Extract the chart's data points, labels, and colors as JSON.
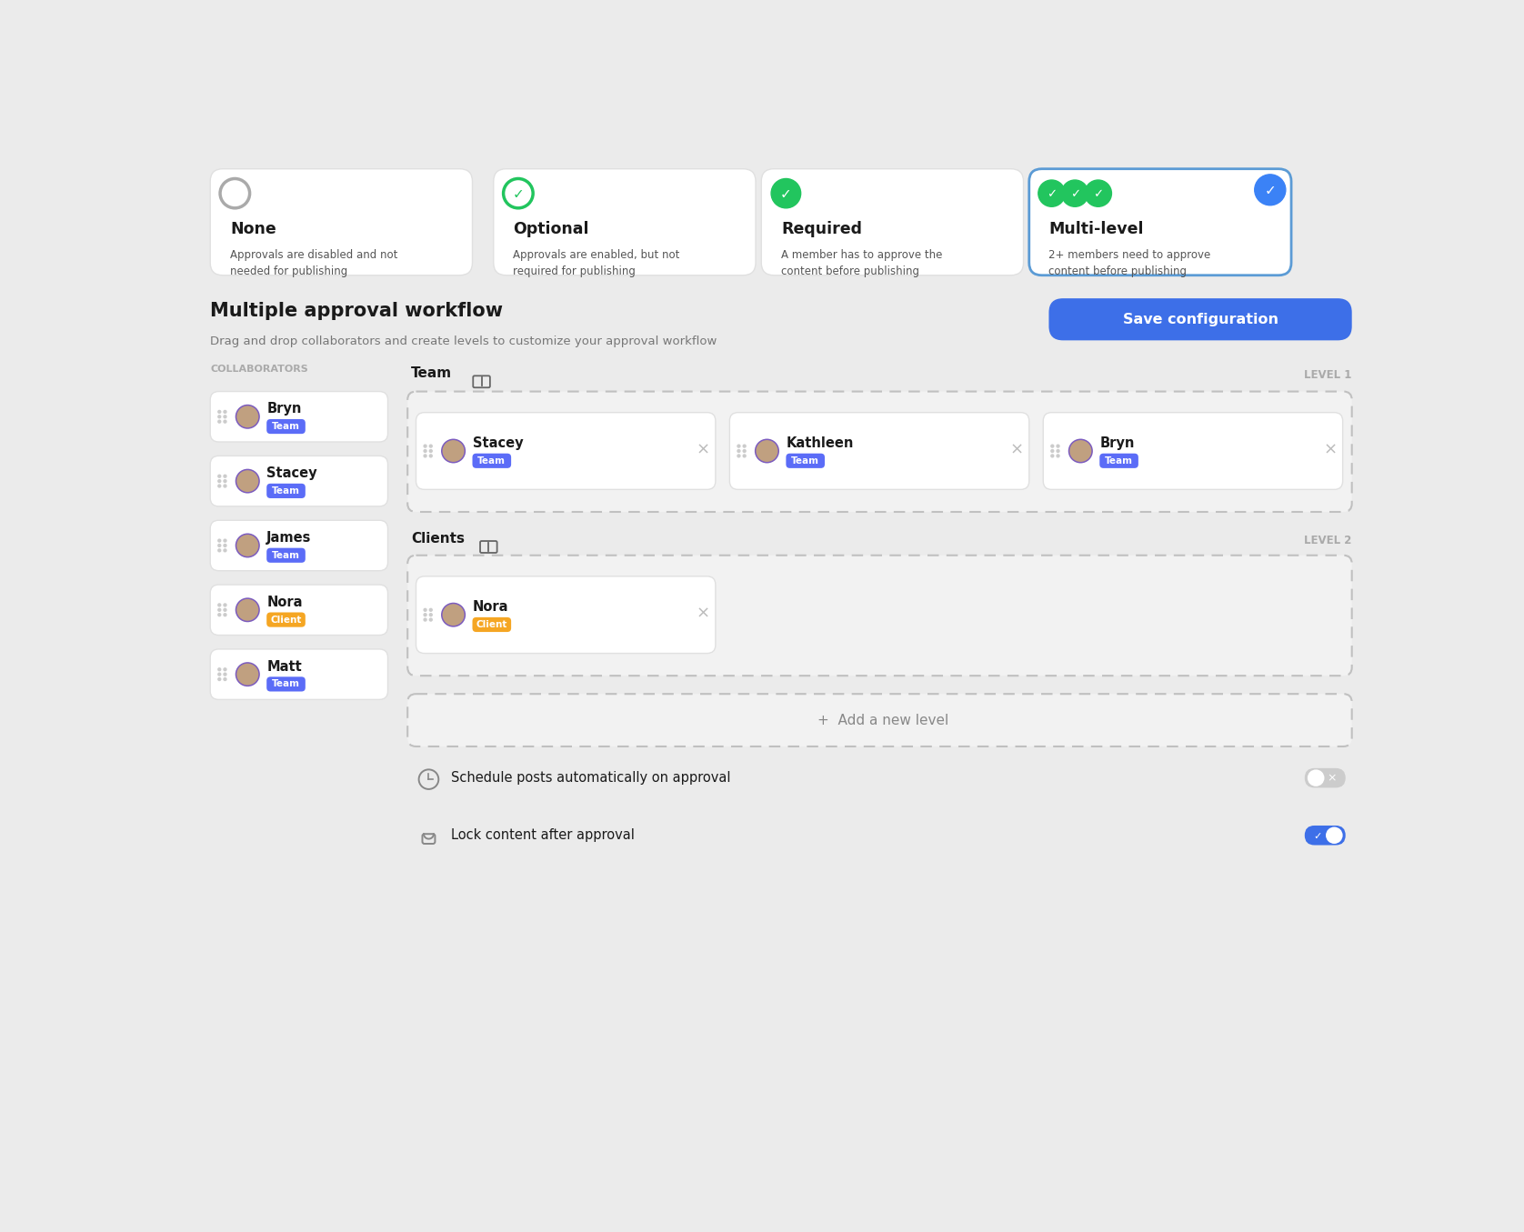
{
  "bg_color": "#ebebeb",
  "title_cards": [
    {
      "title": "None",
      "desc": "Approvals are disabled and not\nneeded for publishing",
      "icon": "circle_empty",
      "selected": false
    },
    {
      "title": "Optional",
      "desc": "Approvals are enabled, but not\nrequired for publishing",
      "icon": "circle_check_outline",
      "selected": false
    },
    {
      "title": "Required",
      "desc": "A member has to approve the\ncontent before publishing",
      "icon": "circle_check_filled",
      "selected": false
    },
    {
      "title": "Multi-level",
      "desc": "2+ members need to approve\ncontent before publishing",
      "icon": "multi_check",
      "selected": true
    }
  ],
  "section_title": "Multiple approval workflow",
  "section_subtitle": "Drag and drop collaborators and create levels to customize your approval workflow",
  "save_button_text": "Save configuration",
  "save_button_color": "#3d6fe8",
  "collaborators_label": "COLLABORATORS",
  "collaborators": [
    {
      "name": "Bryn",
      "role": "Team",
      "role_color": "#5b6cf7"
    },
    {
      "name": "Stacey",
      "role": "Team",
      "role_color": "#5b6cf7"
    },
    {
      "name": "James",
      "role": "Team",
      "role_color": "#5b6cf7"
    },
    {
      "name": "Nora",
      "role": "Client",
      "role_color": "#f5a623"
    },
    {
      "name": "Matt",
      "role": "Team",
      "role_color": "#5b6cf7"
    }
  ],
  "level1_label": "Team",
  "level1_tag": "LEVEL 1",
  "level1_members": [
    {
      "name": "Stacey",
      "role": "Team",
      "role_color": "#5b6cf7"
    },
    {
      "name": "Kathleen",
      "role": "Team",
      "role_color": "#5b6cf7"
    },
    {
      "name": "Bryn",
      "role": "Team",
      "role_color": "#5b6cf7"
    }
  ],
  "level2_label": "Clients",
  "level2_tag": "LEVEL 2",
  "level2_members": [
    {
      "name": "Nora",
      "role": "Client",
      "role_color": "#f5a623"
    }
  ],
  "add_level_text": "+  Add a new level",
  "toggle1_label": "Schedule posts automatically on approval",
  "toggle1_on": false,
  "toggle2_label": "Lock content after approval",
  "toggle2_on": true,
  "toggle_on_color": "#3d6fe8",
  "toggle_off_color": "#cccccc",
  "green_check_color": "#22c55e",
  "blue_check_color": "#3b82f6",
  "card_border_selected": "#5b9bd5",
  "card_bg": "#ffffff",
  "text_dark": "#1a1a1a",
  "text_gray": "#888888",
  "text_light_gray": "#aaaaaa"
}
